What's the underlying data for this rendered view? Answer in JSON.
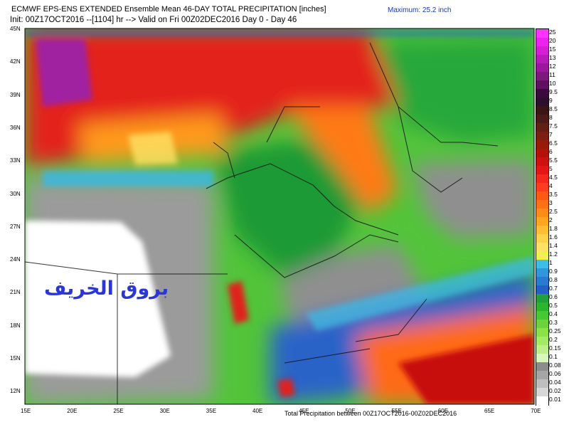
{
  "header": {
    "line1": "ECMWF EPS-ENS EXTENDED Ensemble Mean 46-DAY TOTAL PRECIPITATION [inches]",
    "maximum": "Maximum: 25.2 inch",
    "line2": "Init: 00Z17OCT2016 --[1104] hr --> Valid on Fri 00Z02DEC2016  Day 0 - Day 46"
  },
  "footer": "Total Precipitation between 00Z17OCT2016-00Z02DEC2016",
  "watermark": "بروق الخريف",
  "axes": {
    "lat_labels": [
      "45N",
      "42N",
      "39N",
      "36N",
      "33N",
      "30N",
      "27N",
      "24N",
      "21N",
      "18N",
      "15N",
      "12N"
    ],
    "lon_labels": [
      "15E",
      "20E",
      "25E",
      "30E",
      "35E",
      "40E",
      "45E",
      "50E",
      "55E",
      "60E",
      "65E",
      "70E"
    ]
  },
  "legend": {
    "levels": [
      "25",
      "20",
      "15",
      "13",
      "12",
      "11",
      "10",
      "9.5",
      "9",
      "8.5",
      "8",
      "7.5",
      "7",
      "6.5",
      "6",
      "5.5",
      "5",
      "4.5",
      "4",
      "3.5",
      "3",
      "2.5",
      "2",
      "1.8",
      "1.6",
      "1.4",
      "1.2",
      "1",
      "0.9",
      "0.8",
      "0.7",
      "0.6",
      "0.5",
      "0.4",
      "0.3",
      "0.25",
      "0.2",
      "0.15",
      "0.1",
      "0.08",
      "0.06",
      "0.04",
      "0.02",
      "0.01"
    ],
    "colors": [
      "#ff33ff",
      "#ee22ee",
      "#d41fd4",
      "#b81cb8",
      "#9a189a",
      "#7c1a7c",
      "#5f1060",
      "#3a0a3d",
      "#2b0f2b",
      "#3b1414",
      "#4e1919",
      "#641f14",
      "#7d1f10",
      "#9a1a08",
      "#b5100a",
      "#cf1010",
      "#e31616",
      "#f5281e",
      "#ff3c1e",
      "#ff5a14",
      "#ff7214",
      "#ff8c14",
      "#ffa51e",
      "#ffbe32",
      "#ffd24b",
      "#ffe164",
      "#f0f050",
      "#3cbee6",
      "#3296dc",
      "#2b7ad2",
      "#2760c4",
      "#22a03c",
      "#2bb42e",
      "#46c832",
      "#6ed23c",
      "#8ce146",
      "#a4ea64",
      "#bdf08c",
      "#d7f7be",
      "#8c8c8c",
      "#a5a5a5",
      "#bebebe",
      "#d7d7d7",
      "#ffffff"
    ]
  }
}
